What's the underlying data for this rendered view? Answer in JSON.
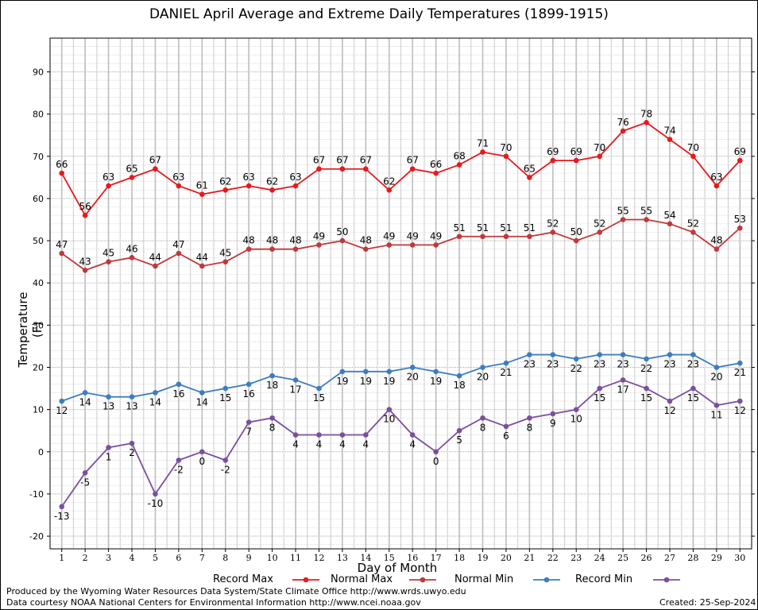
{
  "chart_data": {
    "type": "line",
    "title": "DANIEL April Average and Extreme Daily Temperatures (1899-1915)",
    "xlabel": "Day of Month",
    "ylabel": "Temperature (F)",
    "xlim": [
      0.5,
      30.5
    ],
    "ylim": [
      -23,
      98
    ],
    "yticks": [
      -20,
      -10,
      0,
      10,
      20,
      30,
      40,
      50,
      60,
      70,
      80,
      90
    ],
    "x": [
      1,
      2,
      3,
      4,
      5,
      6,
      7,
      8,
      9,
      10,
      11,
      12,
      13,
      14,
      15,
      16,
      17,
      18,
      19,
      20,
      21,
      22,
      23,
      24,
      25,
      26,
      27,
      28,
      29,
      30
    ],
    "grid": true,
    "legend_position": "bottom",
    "series": [
      {
        "name": "Record Max",
        "color": "#e8191d",
        "values": [
          66,
          56,
          63,
          65,
          67,
          63,
          61,
          62,
          63,
          62,
          63,
          67,
          67,
          67,
          62,
          67,
          66,
          68,
          71,
          70,
          65,
          69,
          69,
          70,
          76,
          78,
          74,
          70,
          63,
          69
        ]
      },
      {
        "name": "Normal Max",
        "color": "#c0393b",
        "values": [
          47,
          43,
          45,
          46,
          44,
          47,
          44,
          45,
          48,
          48,
          48,
          49,
          50,
          48,
          49,
          49,
          49,
          51,
          51,
          51,
          51,
          52,
          50,
          52,
          55,
          55,
          54,
          52,
          48,
          53
        ]
      },
      {
        "name": "Normal Min",
        "color": "#3d7dbf",
        "values": [
          12,
          14,
          13,
          13,
          14,
          16,
          14,
          15,
          16,
          18,
          17,
          15,
          19,
          19,
          19,
          20,
          19,
          18,
          20,
          21,
          23,
          23,
          22,
          23,
          23,
          22,
          23,
          23,
          20,
          21
        ]
      },
      {
        "name": "Record Min",
        "color": "#7b4f9d",
        "values": [
          -13,
          -5,
          1,
          2,
          -10,
          -2,
          0,
          -2,
          7,
          8,
          4,
          4,
          4,
          4,
          10,
          4,
          0,
          5,
          8,
          6,
          8,
          9,
          10,
          15,
          17,
          15,
          12,
          15,
          11,
          12
        ]
      }
    ]
  },
  "footer": {
    "produced_by": "Produced by the Wyoming Water Resources Data System/State Climate Office http://www.wrds.uwyo.edu",
    "courtesy": "Data courtesy NOAA National Centers for Environmental Information http://www.ncei.noaa.gov",
    "created": "Created:  25-Sep-2024"
  }
}
